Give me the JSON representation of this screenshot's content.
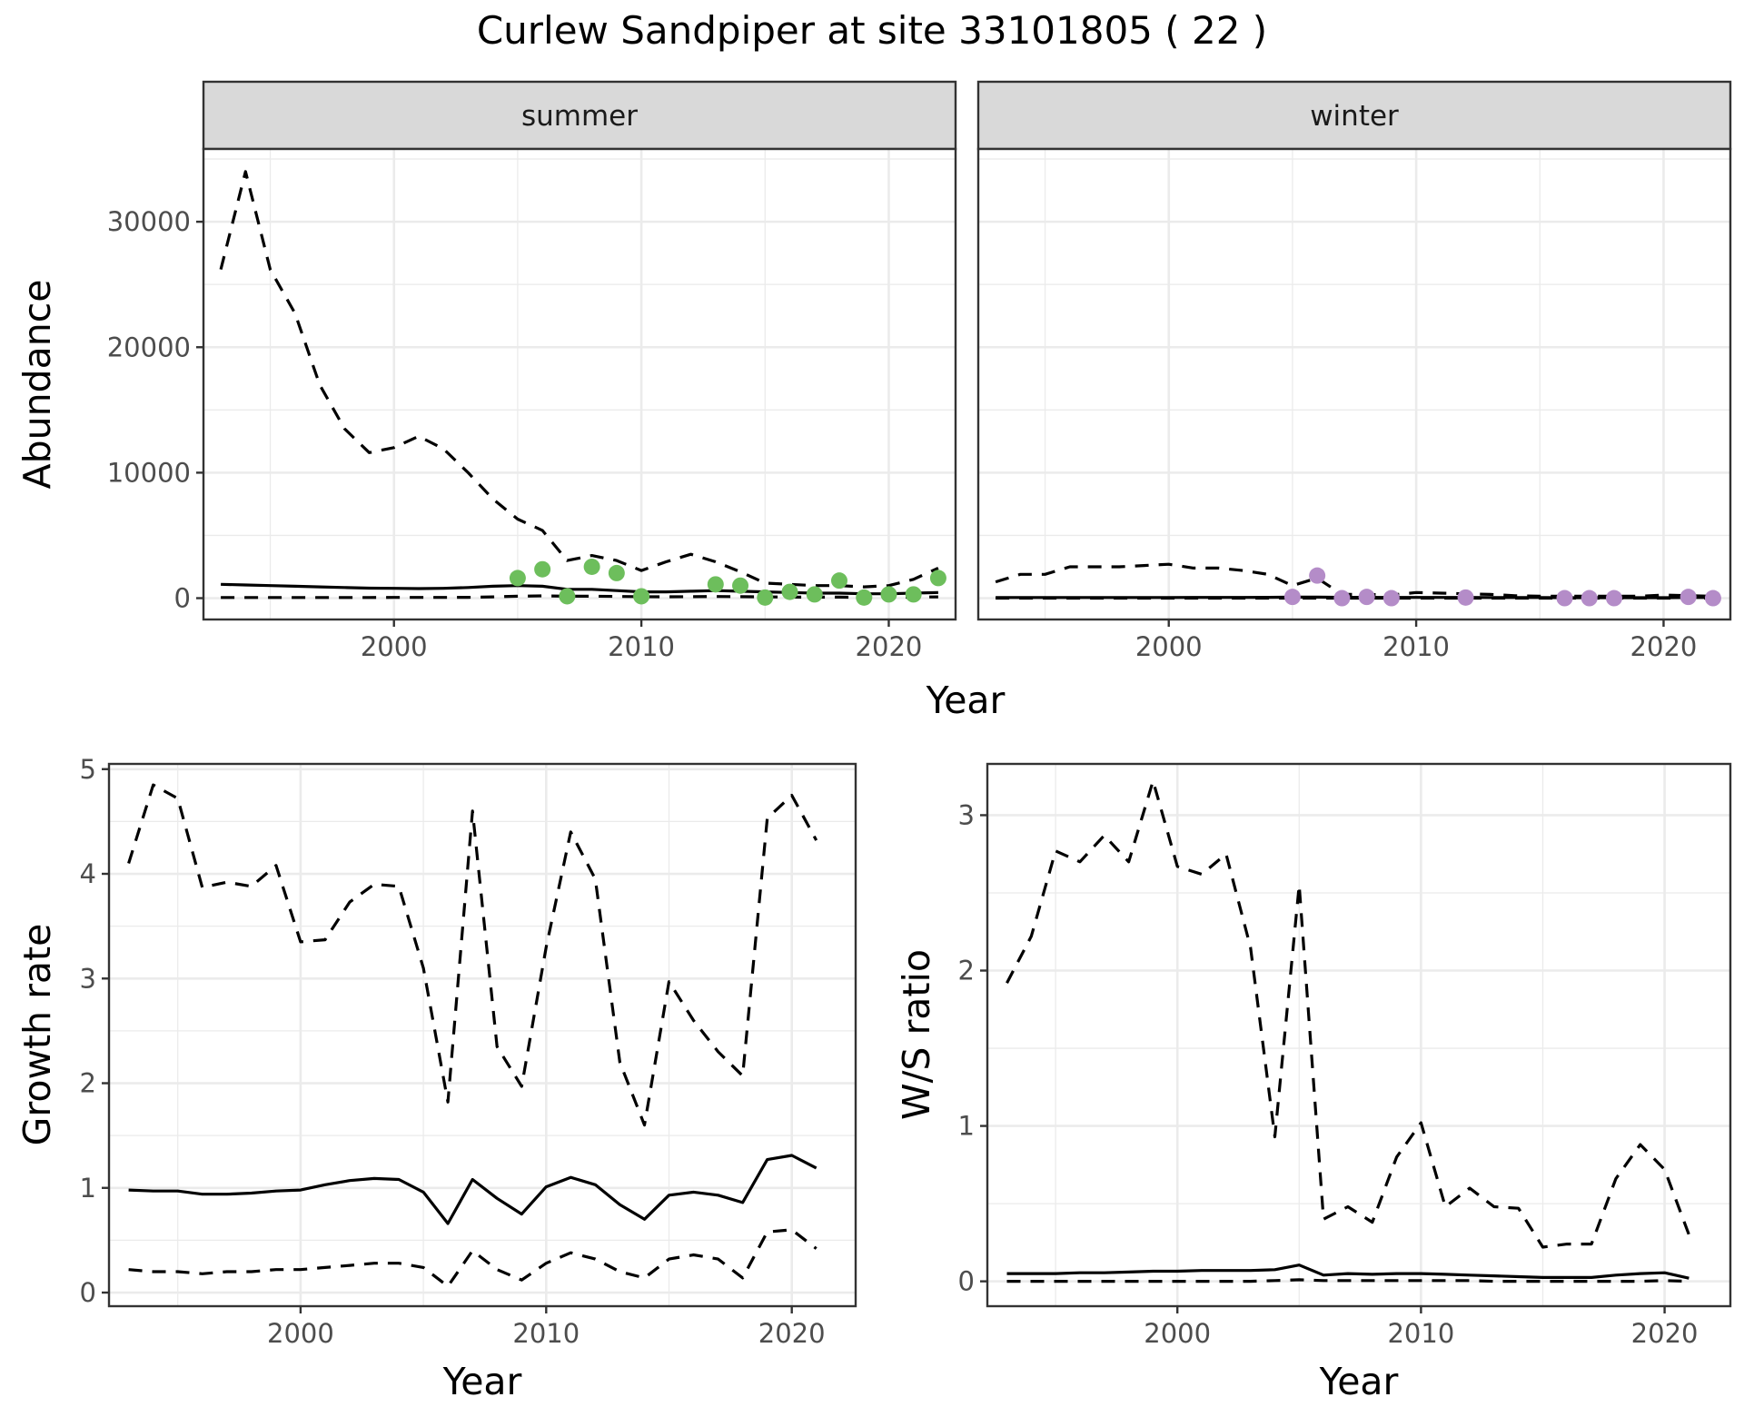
{
  "title": "Curlew Sandpiper at site 33101805 ( 22 )",
  "colors": {
    "summer_points": "#6dbe5c",
    "winter_points": "#b48cc8",
    "lines": "#000000"
  },
  "chart_data": [
    {
      "type": "line",
      "facet": "summer",
      "strip_label": "summer",
      "xlabel": "Year",
      "ylabel": "Abundance",
      "xlim": [
        1992.3,
        2022.7
      ],
      "ylim": [
        -1700,
        35800
      ],
      "x_ticks": [
        2000,
        2010,
        2020
      ],
      "x_tick_labels": [
        "2000",
        "2010",
        "2020"
      ],
      "y_ticks": [
        0,
        10000,
        20000,
        30000
      ],
      "y_tick_labels": [
        "0",
        "10000",
        "20000",
        "30000"
      ],
      "grid": true,
      "series": [
        {
          "style": "dashed",
          "x": [
            1993,
            1994,
            1995,
            1996,
            1997,
            1998,
            1999,
            2000,
            2001,
            2002,
            2003,
            2004,
            2005,
            2006,
            2007,
            2008,
            2009,
            2010,
            2011,
            2012,
            2013,
            2014,
            2015,
            2016,
            2017,
            2018,
            2019,
            2020,
            2021,
            2022
          ],
          "values": [
            26200,
            34000,
            26200,
            22700,
            17000,
            13500,
            11600,
            12000,
            12900,
            11900,
            10000,
            7900,
            6300,
            5400,
            3000,
            3400,
            3000,
            2200,
            2900,
            3500,
            2900,
            2100,
            1200,
            1100,
            1000,
            1000,
            900,
            1000,
            1500,
            2400
          ]
        },
        {
          "style": "solid",
          "x": [
            1993,
            1994,
            1995,
            1996,
            1997,
            1998,
            1999,
            2000,
            2001,
            2002,
            2003,
            2004,
            2005,
            2006,
            2007,
            2008,
            2009,
            2010,
            2011,
            2012,
            2013,
            2014,
            2015,
            2016,
            2017,
            2018,
            2019,
            2020,
            2021,
            2022
          ],
          "values": [
            1100,
            1050,
            1000,
            950,
            900,
            850,
            800,
            780,
            760,
            780,
            850,
            950,
            1000,
            950,
            700,
            700,
            600,
            500,
            500,
            550,
            600,
            550,
            500,
            450,
            400,
            400,
            350,
            350,
            400,
            450
          ]
        },
        {
          "style": "dashed",
          "x": [
            1993,
            1994,
            1995,
            1996,
            1997,
            1998,
            1999,
            2000,
            2001,
            2002,
            2003,
            2004,
            2005,
            2006,
            2007,
            2008,
            2009,
            2010,
            2011,
            2012,
            2013,
            2014,
            2015,
            2016,
            2017,
            2018,
            2019,
            2020,
            2021,
            2022
          ],
          "values": [
            50,
            50,
            50,
            50,
            50,
            50,
            50,
            60,
            60,
            60,
            70,
            100,
            150,
            180,
            150,
            150,
            140,
            120,
            110,
            120,
            130,
            120,
            100,
            90,
            80,
            80,
            70,
            70,
            80,
            100
          ]
        }
      ],
      "points": {
        "x": [
          2005,
          2006,
          2007,
          2008,
          2009,
          2010,
          2013,
          2014,
          2015,
          2016,
          2017,
          2018,
          2019,
          2020,
          2021,
          2022
        ],
        "values": [
          1600,
          2300,
          150,
          2500,
          2000,
          150,
          1100,
          1000,
          50,
          500,
          300,
          1400,
          50,
          300,
          300,
          1600
        ]
      }
    },
    {
      "type": "line",
      "facet": "winter",
      "strip_label": "winter",
      "xlabel": "Year",
      "ylabel": "Abundance",
      "xlim": [
        1992.3,
        2022.7
      ],
      "ylim": [
        -1700,
        35800
      ],
      "x_ticks": [
        2000,
        2010,
        2020
      ],
      "x_tick_labels": [
        "2000",
        "2010",
        "2020"
      ],
      "grid": true,
      "series": [
        {
          "style": "dashed",
          "x": [
            1993,
            1994,
            1995,
            1996,
            1997,
            1998,
            1999,
            2000,
            2001,
            2002,
            2003,
            2004,
            2005,
            2006,
            2007,
            2008,
            2009,
            2010,
            2011,
            2012,
            2013,
            2014,
            2015,
            2016,
            2017,
            2018,
            2019,
            2020,
            2021,
            2022
          ],
          "values": [
            1300,
            1900,
            1900,
            2500,
            2500,
            2500,
            2600,
            2700,
            2400,
            2400,
            2200,
            1900,
            1000,
            1600,
            300,
            300,
            250,
            450,
            400,
            350,
            300,
            200,
            150,
            150,
            150,
            150,
            150,
            250,
            200,
            150
          ]
        },
        {
          "style": "solid",
          "x": [
            1993,
            1994,
            1995,
            1996,
            1997,
            1998,
            1999,
            2000,
            2001,
            2002,
            2003,
            2004,
            2005,
            2006,
            2007,
            2008,
            2009,
            2010,
            2011,
            2012,
            2013,
            2014,
            2015,
            2016,
            2017,
            2018,
            2019,
            2020,
            2021,
            2022
          ],
          "values": [
            50,
            50,
            50,
            50,
            50,
            50,
            50,
            50,
            60,
            60,
            60,
            70,
            80,
            80,
            70,
            70,
            60,
            60,
            60,
            60,
            50,
            50,
            50,
            40,
            40,
            40,
            40,
            40,
            50,
            50
          ]
        },
        {
          "style": "dashed",
          "x": [
            1993,
            1994,
            1995,
            1996,
            1997,
            1998,
            1999,
            2000,
            2001,
            2002,
            2003,
            2004,
            2005,
            2006,
            2007,
            2008,
            2009,
            2010,
            2011,
            2012,
            2013,
            2014,
            2015,
            2016,
            2017,
            2018,
            2019,
            2020,
            2021,
            2022
          ],
          "values": [
            0,
            0,
            0,
            0,
            0,
            0,
            0,
            0,
            0,
            0,
            0,
            0,
            0,
            0,
            0,
            0,
            0,
            0,
            0,
            0,
            0,
            0,
            0,
            0,
            0,
            0,
            0,
            0,
            0,
            0
          ]
        }
      ],
      "points": {
        "x": [
          2005,
          2006,
          2007,
          2008,
          2009,
          2012,
          2016,
          2017,
          2018,
          2021,
          2022
        ],
        "values": [
          100,
          1800,
          0,
          100,
          0,
          50,
          0,
          0,
          0,
          100,
          0
        ]
      }
    },
    {
      "type": "line",
      "xlabel": "Year",
      "ylabel": "Growth rate",
      "xlim": [
        1992.2,
        2022.6
      ],
      "ylim": [
        -0.13,
        5.05
      ],
      "x_ticks": [
        2000,
        2010,
        2020
      ],
      "x_tick_labels": [
        "2000",
        "2010",
        "2020"
      ],
      "y_ticks": [
        0,
        1,
        2,
        3,
        4,
        5
      ],
      "y_tick_labels": [
        "0",
        "1",
        "2",
        "3",
        "4",
        "5"
      ],
      "grid": true,
      "series": [
        {
          "style": "dashed",
          "x": [
            1993,
            1994,
            1995,
            1996,
            1997,
            1998,
            1999,
            2000,
            2001,
            2002,
            2003,
            2004,
            2005,
            2006,
            2007,
            2008,
            2009,
            2010,
            2011,
            2012,
            2013,
            2014,
            2015,
            2016,
            2017,
            2018,
            2019,
            2020,
            2021
          ],
          "values": [
            4.1,
            4.85,
            4.72,
            3.87,
            3.92,
            3.88,
            4.08,
            3.35,
            3.37,
            3.73,
            3.9,
            3.88,
            3.1,
            1.82,
            4.6,
            2.35,
            1.97,
            3.3,
            4.4,
            3.95,
            2.2,
            1.6,
            2.97,
            2.6,
            2.3,
            2.07,
            4.53,
            4.75,
            4.32
          ]
        },
        {
          "style": "solid",
          "x": [
            1993,
            1994,
            1995,
            1996,
            1997,
            1998,
            1999,
            2000,
            2001,
            2002,
            2003,
            2004,
            2005,
            2006,
            2007,
            2008,
            2009,
            2010,
            2011,
            2012,
            2013,
            2014,
            2015,
            2016,
            2017,
            2018,
            2019,
            2020,
            2021
          ],
          "values": [
            0.98,
            0.97,
            0.97,
            0.94,
            0.94,
            0.95,
            0.97,
            0.98,
            1.03,
            1.07,
            1.09,
            1.08,
            0.96,
            0.66,
            1.08,
            0.9,
            0.75,
            1.01,
            1.1,
            1.03,
            0.84,
            0.7,
            0.93,
            0.96,
            0.93,
            0.86,
            1.27,
            1.31,
            1.19
          ]
        },
        {
          "style": "dashed",
          "x": [
            1993,
            1994,
            1995,
            1996,
            1997,
            1998,
            1999,
            2000,
            2001,
            2002,
            2003,
            2004,
            2005,
            2006,
            2007,
            2008,
            2009,
            2010,
            2011,
            2012,
            2013,
            2014,
            2015,
            2016,
            2017,
            2018,
            2019,
            2020,
            2021
          ],
          "values": [
            0.22,
            0.2,
            0.2,
            0.18,
            0.2,
            0.2,
            0.22,
            0.22,
            0.24,
            0.26,
            0.28,
            0.28,
            0.24,
            0.06,
            0.4,
            0.22,
            0.12,
            0.28,
            0.38,
            0.32,
            0.2,
            0.14,
            0.32,
            0.36,
            0.32,
            0.14,
            0.58,
            0.6,
            0.42
          ]
        }
      ]
    },
    {
      "type": "line",
      "xlabel": "Year",
      "ylabel": "W/S ratio",
      "xlim": [
        1992.2,
        2022.7
      ],
      "ylim": [
        -0.16,
        3.33
      ],
      "x_ticks": [
        2000,
        2010,
        2020
      ],
      "x_tick_labels": [
        "2000",
        "2010",
        "2020"
      ],
      "y_ticks": [
        0,
        1,
        2,
        3
      ],
      "y_tick_labels": [
        "0",
        "1",
        "2",
        "3"
      ],
      "grid": true,
      "series": [
        {
          "style": "dashed",
          "x": [
            1993,
            1994,
            1995,
            1996,
            1997,
            1998,
            1999,
            2000,
            2001,
            2002,
            2003,
            2004,
            2005,
            2006,
            2007,
            2008,
            2009,
            2010,
            2011,
            2012,
            2013,
            2014,
            2015,
            2016,
            2017,
            2018,
            2019,
            2020,
            2021
          ],
          "values": [
            1.92,
            2.22,
            2.77,
            2.7,
            2.87,
            2.7,
            3.22,
            2.67,
            2.62,
            2.75,
            2.15,
            0.93,
            2.55,
            0.4,
            0.48,
            0.38,
            0.8,
            1.02,
            0.48,
            0.6,
            0.48,
            0.47,
            0.22,
            0.24,
            0.24,
            0.66,
            0.88,
            0.72,
            0.3
          ]
        },
        {
          "style": "solid",
          "x": [
            1993,
            1994,
            1995,
            1996,
            1997,
            1998,
            1999,
            2000,
            2001,
            2002,
            2003,
            2004,
            2005,
            2006,
            2007,
            2008,
            2009,
            2010,
            2011,
            2012,
            2013,
            2014,
            2015,
            2016,
            2017,
            2018,
            2019,
            2020,
            2021
          ],
          "values": [
            0.05,
            0.05,
            0.05,
            0.055,
            0.055,
            0.06,
            0.065,
            0.065,
            0.07,
            0.07,
            0.07,
            0.075,
            0.105,
            0.04,
            0.05,
            0.045,
            0.05,
            0.05,
            0.045,
            0.04,
            0.035,
            0.03,
            0.025,
            0.025,
            0.025,
            0.04,
            0.05,
            0.055,
            0.02
          ]
        },
        {
          "style": "dashed",
          "x": [
            1993,
            1994,
            1995,
            1996,
            1997,
            1998,
            1999,
            2000,
            2001,
            2002,
            2003,
            2004,
            2005,
            2006,
            2007,
            2008,
            2009,
            2010,
            2011,
            2012,
            2013,
            2014,
            2015,
            2016,
            2017,
            2018,
            2019,
            2020,
            2021
          ],
          "values": [
            0,
            0,
            0,
            0,
            0,
            0,
            0,
            0,
            0,
            0,
            0,
            0.005,
            0.01,
            0.005,
            0.005,
            0.005,
            0.005,
            0.005,
            0.005,
            0.005,
            0,
            0,
            0,
            0,
            0,
            0,
            0,
            0.005,
            0
          ]
        }
      ]
    }
  ]
}
